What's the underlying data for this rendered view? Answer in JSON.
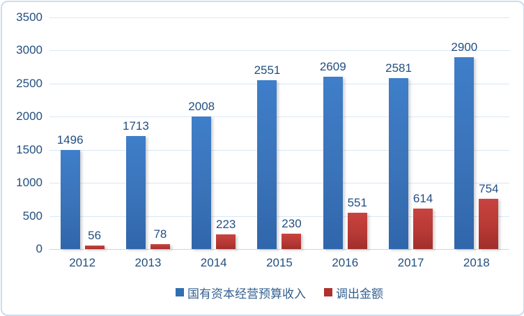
{
  "chart_data": {
    "type": "bar",
    "title": "",
    "categories": [
      "2012",
      "2013",
      "2014",
      "2015",
      "2016",
      "2017",
      "2018"
    ],
    "series": [
      {
        "id": "budget-revenue",
        "name": "国有资本经营预算收入",
        "values": [
          1496,
          1713,
          2008,
          2551,
          2609,
          2581,
          2900
        ],
        "color_top": "#3f7ec9",
        "color_bottom": "#3066ab",
        "swatch": "#2f6fb3"
      },
      {
        "id": "transfer-out",
        "name": "调出金额",
        "values": [
          56,
          78,
          223,
          230,
          551,
          614,
          754
        ],
        "color_top": "#c8433f",
        "color_bottom": "#a02f2b",
        "swatch": "#b0312d"
      }
    ],
    "ylim": [
      0,
      3500
    ],
    "ytick_step": 500,
    "yticks": [
      0,
      500,
      1000,
      1500,
      2000,
      2500,
      3000,
      3500
    ],
    "grid": true,
    "legend_position": "bottom",
    "colors": {
      "text": "#234f80",
      "legend_text": "#33608f",
      "gridline": "#d9e7f5",
      "baseline": "#c3d8ec",
      "frame_border": "#ccdcef"
    }
  }
}
